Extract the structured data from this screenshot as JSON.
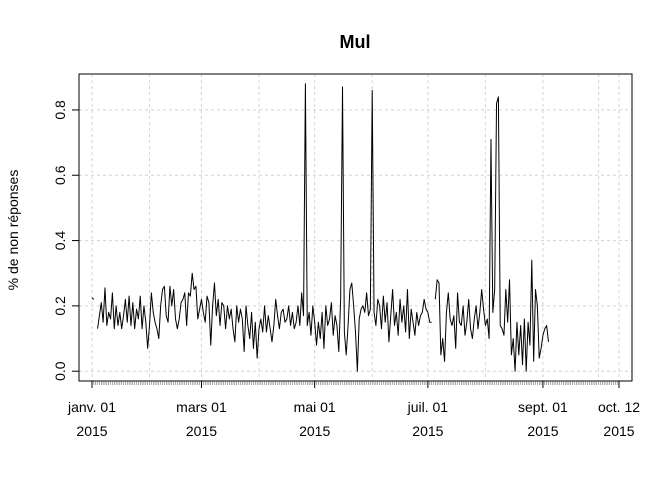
{
  "chart_data": {
    "type": "line",
    "title": "Mul",
    "xlabel": "",
    "ylabel": "% de non réponses",
    "x_tick_labels": [
      [
        "janv. 01",
        "2015"
      ],
      [
        "mars 01",
        "2015"
      ],
      [
        "mai 01",
        "2015"
      ],
      [
        "juil. 01",
        "2015"
      ],
      [
        "sept. 01",
        "2015"
      ],
      [
        "oct. 12",
        "2015"
      ]
    ],
    "x_ticks": [
      "2015-01-01",
      "2015-03-01",
      "2015-05-01",
      "2015-07-01",
      "2015-09-01",
      "2015-10-12"
    ],
    "y_ticks": [
      0.0,
      0.2,
      0.4,
      0.6,
      0.8
    ],
    "y_tick_labels": [
      "0.0",
      "0.2",
      "0.4",
      "0.6",
      "0.8"
    ],
    "xlim": [
      "2014-12-25",
      "2015-10-19"
    ],
    "ylim": [
      -0.03,
      0.91
    ],
    "grid": true,
    "series": [
      {
        "points": [
          [
            "2015-01-01",
            0.225
          ],
          [
            "2015-01-02",
            0.22
          ],
          [
            "2015-01-03",
            null
          ],
          [
            "2015-01-04",
            0.13
          ],
          [
            "2015-01-05",
            0.17
          ],
          [
            "2015-01-06",
            0.21
          ],
          [
            "2015-01-07",
            0.15
          ],
          [
            "2015-01-08",
            0.255
          ],
          [
            "2015-01-09",
            0.14
          ],
          [
            "2015-01-10",
            0.18
          ],
          [
            "2015-01-11",
            0.16
          ],
          [
            "2015-01-12",
            0.24
          ],
          [
            "2015-01-13",
            0.13
          ],
          [
            "2015-01-14",
            0.2
          ],
          [
            "2015-01-15",
            0.14
          ],
          [
            "2015-01-16",
            0.18
          ],
          [
            "2015-01-17",
            0.13
          ],
          [
            "2015-01-18",
            0.17
          ],
          [
            "2015-01-19",
            0.22
          ],
          [
            "2015-01-20",
            0.15
          ],
          [
            "2015-01-21",
            0.23
          ],
          [
            "2015-01-22",
            0.14
          ],
          [
            "2015-01-23",
            0.21
          ],
          [
            "2015-01-24",
            0.13
          ],
          [
            "2015-01-25",
            0.19
          ],
          [
            "2015-01-26",
            0.16
          ],
          [
            "2015-01-27",
            0.23
          ],
          [
            "2015-01-28",
            0.13
          ],
          [
            "2015-01-29",
            0.2
          ],
          [
            "2015-01-30",
            0.15
          ],
          [
            "2015-01-31",
            0.07
          ],
          [
            "2015-02-01",
            0.14
          ],
          [
            "2015-02-02",
            0.24
          ],
          [
            "2015-02-03",
            0.18
          ],
          [
            "2015-02-04",
            0.15
          ],
          [
            "2015-02-05",
            0.13
          ],
          [
            "2015-02-06",
            0.1
          ],
          [
            "2015-02-07",
            0.2
          ],
          [
            "2015-02-08",
            0.25
          ],
          [
            "2015-02-09",
            0.26
          ],
          [
            "2015-02-10",
            0.17
          ],
          [
            "2015-02-11",
            0.15
          ],
          [
            "2015-02-12",
            0.26
          ],
          [
            "2015-02-13",
            0.2
          ],
          [
            "2015-02-14",
            0.25
          ],
          [
            "2015-02-15",
            0.16
          ],
          [
            "2015-02-16",
            0.13
          ],
          [
            "2015-02-17",
            0.16
          ],
          [
            "2015-02-18",
            0.21
          ],
          [
            "2015-02-19",
            0.22
          ],
          [
            "2015-02-20",
            0.24
          ],
          [
            "2015-02-21",
            0.14
          ],
          [
            "2015-02-22",
            0.24
          ],
          [
            "2015-02-23",
            0.23
          ],
          [
            "2015-02-24",
            0.3
          ],
          [
            "2015-02-25",
            0.25
          ],
          [
            "2015-02-26",
            0.26
          ],
          [
            "2015-02-27",
            0.16
          ],
          [
            "2015-02-28",
            0.19
          ],
          [
            "2015-03-01",
            0.22
          ],
          [
            "2015-03-02",
            0.18
          ],
          [
            "2015-03-03",
            0.15
          ],
          [
            "2015-03-04",
            0.23
          ],
          [
            "2015-03-05",
            0.21
          ],
          [
            "2015-03-06",
            0.08
          ],
          [
            "2015-03-07",
            0.2
          ],
          [
            "2015-03-08",
            0.27
          ],
          [
            "2015-03-09",
            0.17
          ],
          [
            "2015-03-10",
            0.22
          ],
          [
            "2015-03-11",
            0.14
          ],
          [
            "2015-03-12",
            0.21
          ],
          [
            "2015-03-13",
            0.2
          ],
          [
            "2015-03-14",
            0.13
          ],
          [
            "2015-03-15",
            0.2
          ],
          [
            "2015-03-16",
            0.16
          ],
          [
            "2015-03-17",
            0.19
          ],
          [
            "2015-03-18",
            0.13
          ],
          [
            "2015-03-19",
            0.09
          ],
          [
            "2015-03-20",
            0.2
          ],
          [
            "2015-03-21",
            0.15
          ],
          [
            "2015-03-22",
            0.19
          ],
          [
            "2015-03-23",
            0.16
          ],
          [
            "2015-03-24",
            0.06
          ],
          [
            "2015-03-25",
            0.2
          ],
          [
            "2015-03-26",
            0.14
          ],
          [
            "2015-03-27",
            0.1
          ],
          [
            "2015-03-28",
            0.18
          ],
          [
            "2015-03-29",
            0.07
          ],
          [
            "2015-03-30",
            0.15
          ],
          [
            "2015-03-31",
            0.04
          ],
          [
            "2015-04-01",
            0.13
          ],
          [
            "2015-04-02",
            0.16
          ],
          [
            "2015-04-03",
            0.12
          ],
          [
            "2015-04-04",
            0.2
          ],
          [
            "2015-04-05",
            0.12
          ],
          [
            "2015-04-06",
            0.17
          ],
          [
            "2015-04-07",
            0.13
          ],
          [
            "2015-04-08",
            0.09
          ],
          [
            "2015-04-09",
            0.14
          ],
          [
            "2015-04-10",
            0.22
          ],
          [
            "2015-04-11",
            0.17
          ],
          [
            "2015-04-12",
            0.13
          ],
          [
            "2015-04-13",
            0.18
          ],
          [
            "2015-04-14",
            0.19
          ],
          [
            "2015-04-15",
            0.15
          ],
          [
            "2015-04-16",
            0.16
          ],
          [
            "2015-04-17",
            0.2
          ],
          [
            "2015-04-18",
            0.14
          ],
          [
            "2015-04-19",
            0.18
          ],
          [
            "2015-04-20",
            0.13
          ],
          [
            "2015-04-21",
            0.15
          ],
          [
            "2015-04-22",
            0.2
          ],
          [
            "2015-04-23",
            0.14
          ],
          [
            "2015-04-24",
            0.24
          ],
          [
            "2015-04-25",
            0.17
          ],
          [
            "2015-04-26",
            0.88
          ],
          [
            "2015-04-27",
            0.14
          ],
          [
            "2015-04-28",
            0.18
          ],
          [
            "2015-04-29",
            0.11
          ],
          [
            "2015-04-30",
            0.2
          ],
          [
            "2015-05-01",
            0.15
          ],
          [
            "2015-05-02",
            0.08
          ],
          [
            "2015-05-03",
            0.15
          ],
          [
            "2015-05-04",
            0.1
          ],
          [
            "2015-05-05",
            0.18
          ],
          [
            "2015-05-06",
            0.07
          ],
          [
            "2015-05-07",
            0.2
          ],
          [
            "2015-05-08",
            0.14
          ],
          [
            "2015-05-09",
            0.16
          ],
          [
            "2015-05-10",
            0.21
          ],
          [
            "2015-05-11",
            0.11
          ],
          [
            "2015-05-12",
            0.17
          ],
          [
            "2015-05-13",
            0.14
          ],
          [
            "2015-05-14",
            0.06
          ],
          [
            "2015-05-15",
            0.22
          ],
          [
            "2015-05-16",
            0.87
          ],
          [
            "2015-05-17",
            0.12
          ],
          [
            "2015-05-18",
            0.05
          ],
          [
            "2015-05-19",
            0.14
          ],
          [
            "2015-05-20",
            0.25
          ],
          [
            "2015-05-21",
            0.27
          ],
          [
            "2015-05-22",
            0.2
          ],
          [
            "2015-05-23",
            0.12
          ],
          [
            "2015-05-24",
            0.0
          ],
          [
            "2015-05-25",
            0.16
          ],
          [
            "2015-05-26",
            0.19
          ],
          [
            "2015-05-27",
            0.2
          ],
          [
            "2015-05-28",
            0.18
          ],
          [
            "2015-05-29",
            0.24
          ],
          [
            "2015-05-30",
            0.17
          ],
          [
            "2015-05-31",
            0.19
          ],
          [
            "2015-06-01",
            0.86
          ],
          [
            "2015-06-02",
            0.18
          ],
          [
            "2015-06-03",
            0.14
          ],
          [
            "2015-06-04",
            0.22
          ],
          [
            "2015-06-05",
            0.2
          ],
          [
            "2015-06-06",
            0.13
          ],
          [
            "2015-06-07",
            0.23
          ],
          [
            "2015-06-08",
            0.15
          ],
          [
            "2015-06-09",
            0.21
          ],
          [
            "2015-06-10",
            0.09
          ],
          [
            "2015-06-11",
            0.17
          ],
          [
            "2015-06-12",
            0.25
          ],
          [
            "2015-06-13",
            0.14
          ],
          [
            "2015-06-14",
            0.18
          ],
          [
            "2015-06-15",
            0.11
          ],
          [
            "2015-06-16",
            0.22
          ],
          [
            "2015-06-17",
            0.15
          ],
          [
            "2015-06-18",
            0.2
          ],
          [
            "2015-06-19",
            0.12
          ],
          [
            "2015-06-20",
            0.25
          ],
          [
            "2015-06-21",
            0.1
          ],
          [
            "2015-06-22",
            0.19
          ],
          [
            "2015-06-23",
            0.15
          ],
          [
            "2015-06-24",
            0.11
          ],
          [
            "2015-06-25",
            0.18
          ],
          [
            "2015-06-26",
            0.14
          ],
          [
            "2015-06-27",
            0.17
          ],
          [
            "2015-06-28",
            0.18
          ],
          [
            "2015-06-29",
            0.22
          ],
          [
            "2015-06-30",
            0.19
          ],
          [
            "2015-07-01",
            0.18
          ],
          [
            "2015-07-02",
            0.15
          ],
          [
            "2015-07-03",
            0.15
          ],
          [
            "2015-07-04",
            null
          ],
          [
            "2015-07-05",
            0.22
          ],
          [
            "2015-07-06",
            0.28
          ],
          [
            "2015-07-07",
            0.27
          ],
          [
            "2015-07-08",
            0.05
          ],
          [
            "2015-07-09",
            0.1
          ],
          [
            "2015-07-10",
            0.03
          ],
          [
            "2015-07-11",
            0.18
          ],
          [
            "2015-07-12",
            0.24
          ],
          [
            "2015-07-13",
            0.16
          ],
          [
            "2015-07-14",
            0.14
          ],
          [
            "2015-07-15",
            0.17
          ],
          [
            "2015-07-16",
            0.07
          ],
          [
            "2015-07-17",
            0.24
          ],
          [
            "2015-07-18",
            0.15
          ],
          [
            "2015-07-19",
            0.14
          ],
          [
            "2015-07-20",
            0.2
          ],
          [
            "2015-07-21",
            0.11
          ],
          [
            "2015-07-22",
            0.15
          ],
          [
            "2015-07-23",
            0.22
          ],
          [
            "2015-07-24",
            0.13
          ],
          [
            "2015-07-25",
            0.1
          ],
          [
            "2015-07-26",
            0.16
          ],
          [
            "2015-07-27",
            0.2
          ],
          [
            "2015-07-28",
            0.13
          ],
          [
            "2015-07-29",
            0.18
          ],
          [
            "2015-07-30",
            0.25
          ],
          [
            "2015-07-31",
            0.19
          ],
          [
            "2015-08-01",
            0.14
          ],
          [
            "2015-08-02",
            0.16
          ],
          [
            "2015-08-03",
            0.1
          ],
          [
            "2015-08-04",
            0.71
          ],
          [
            "2015-08-05",
            0.18
          ],
          [
            "2015-08-06",
            0.25
          ],
          [
            "2015-08-07",
            0.82
          ],
          [
            "2015-08-08",
            0.84
          ],
          [
            "2015-08-09",
            0.14
          ],
          [
            "2015-08-10",
            0.13
          ],
          [
            "2015-08-11",
            0.11
          ],
          [
            "2015-08-12",
            0.25
          ],
          [
            "2015-08-13",
            0.15
          ],
          [
            "2015-08-14",
            0.28
          ],
          [
            "2015-08-15",
            0.05
          ],
          [
            "2015-08-16",
            0.1
          ],
          [
            "2015-08-17",
            0.0
          ],
          [
            "2015-08-18",
            0.15
          ],
          [
            "2015-08-19",
            0.05
          ],
          [
            "2015-08-20",
            0.14
          ],
          [
            "2015-08-21",
            0.02
          ],
          [
            "2015-08-22",
            0.16
          ],
          [
            "2015-08-23",
            0.0
          ],
          [
            "2015-08-24",
            0.15
          ],
          [
            "2015-08-25",
            0.08
          ],
          [
            "2015-08-26",
            0.34
          ],
          [
            "2015-08-27",
            0.03
          ],
          [
            "2015-08-28",
            0.25
          ],
          [
            "2015-08-29",
            0.2
          ],
          [
            "2015-08-30",
            0.04
          ],
          [
            "2015-08-31",
            0.07
          ],
          [
            "2015-09-01",
            0.11
          ],
          [
            "2015-09-02",
            0.13
          ],
          [
            "2015-09-03",
            0.14
          ],
          [
            "2015-09-04",
            0.09
          ]
        ]
      }
    ]
  }
}
